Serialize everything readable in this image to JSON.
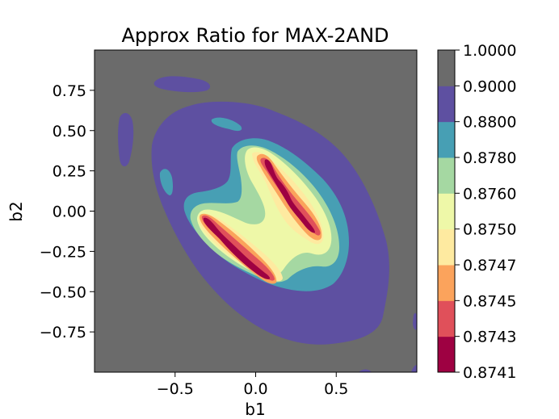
{
  "chart_data": {
    "type": "heatmap",
    "title": "Approx Ratio for MAX-2AND",
    "xlabel": "b1",
    "ylabel": "b2",
    "xlim": [
      -1.0,
      1.0
    ],
    "ylim": [
      -1.0,
      1.0
    ],
    "xticks": [
      {
        "value": -0.5,
        "label": "−0.5"
      },
      {
        "value": 0.0,
        "label": "0.0"
      },
      {
        "value": 0.5,
        "label": "0.5"
      }
    ],
    "yticks": [
      {
        "value": 0.75,
        "label": "0.75"
      },
      {
        "value": 0.5,
        "label": "0.50"
      },
      {
        "value": 0.25,
        "label": "0.25"
      },
      {
        "value": 0.0,
        "label": "0.00"
      },
      {
        "value": -0.25,
        "label": "−0.25"
      },
      {
        "value": -0.5,
        "label": "−0.50"
      },
      {
        "value": -0.75,
        "label": "−0.75"
      }
    ],
    "colorbar": {
      "levels": [
        "0.8741",
        "0.8743",
        "0.8745",
        "0.8747",
        "0.8750",
        "0.8760",
        "0.8780",
        "0.8800",
        "0.9000",
        "1.0000"
      ],
      "colors": [
        "#9e0142",
        "#e0505a",
        "#fba35c",
        "#feeaa0",
        "#eef8a8",
        "#a5d8a2",
        "#479fb4",
        "#5e50a1",
        "#6b6b6b"
      ]
    },
    "grid": false,
    "legend": "colorbar-right"
  }
}
